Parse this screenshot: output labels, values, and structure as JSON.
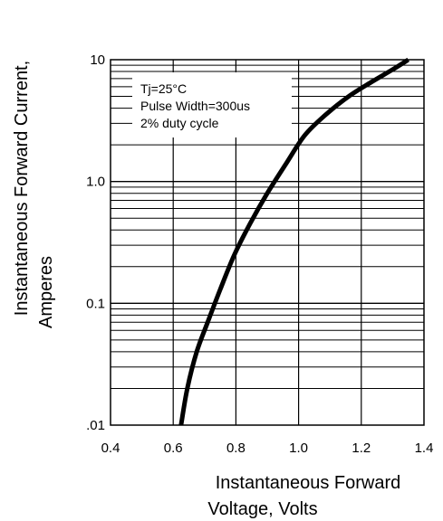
{
  "chart_data": {
    "type": "line",
    "title": "",
    "xlabel_lines": [
      "Instantaneous Forward",
      "Voltage, Volts"
    ],
    "ylabel_lines": [
      "Instantaneous Forward Current,",
      "Amperes"
    ],
    "xlim": [
      0.4,
      1.4
    ],
    "ylim": [
      0.01,
      10
    ],
    "yscale": "log",
    "grid": true,
    "x_tick_labels": [
      {
        "value": 0.4,
        "label": "0.4"
      },
      {
        "value": 0.6,
        "label": "0.6"
      },
      {
        "value": 0.8,
        "label": "0.8"
      },
      {
        "value": 1.0,
        "label": "1.0"
      },
      {
        "value": 1.2,
        "label": "1.2"
      },
      {
        "value": 1.4,
        "label": "1.4"
      }
    ],
    "y_tick_labels": [
      {
        "value": 0.01,
        "label": ".01"
      },
      {
        "value": 0.1,
        "label": "0.1"
      },
      {
        "value": 1.0,
        "label": "1.0"
      },
      {
        "value": 10,
        "label": "10"
      }
    ],
    "annotation_lines": [
      "Tj=25°C",
      "Pulse Width=300us",
      "2% duty cycle"
    ],
    "series": [
      {
        "color": "#000000",
        "x": [
          0.625,
          0.645,
          0.675,
          0.71,
          0.75,
          0.795,
          0.845,
          0.9,
          0.96,
          1.02,
          1.09,
          1.16,
          1.23,
          1.3,
          1.35
        ],
        "y": [
          0.01,
          0.02,
          0.04,
          0.07,
          0.13,
          0.25,
          0.45,
          0.8,
          1.4,
          2.4,
          3.6,
          5.0,
          6.5,
          8.3,
          10.0
        ]
      }
    ]
  }
}
